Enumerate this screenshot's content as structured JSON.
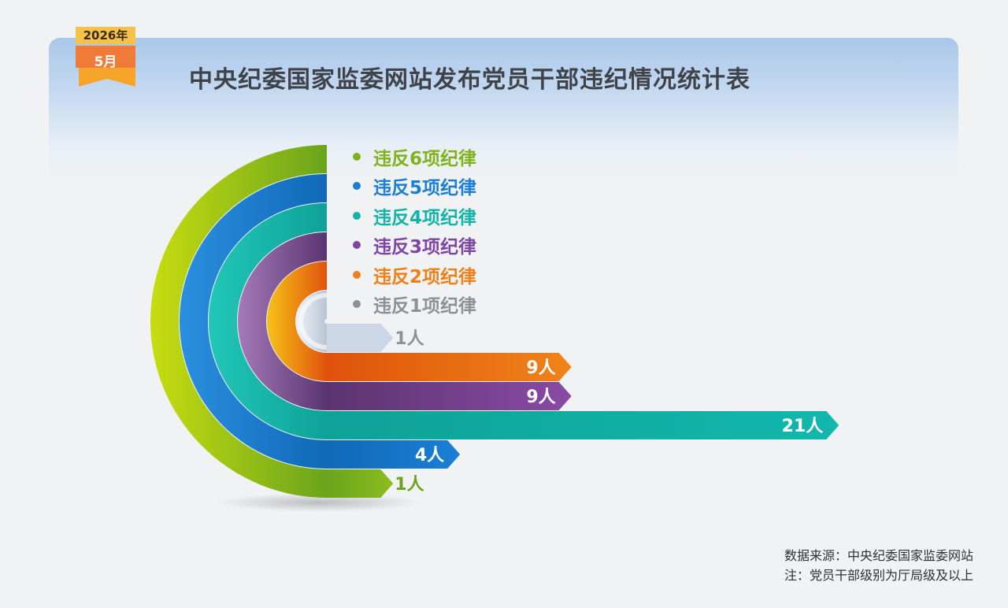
{
  "header": {
    "year_badge": "2026年",
    "month_badge": "5月",
    "title": "中央纪委国家监委网站发布党员干部违纪情况统计表"
  },
  "colors": {
    "violate_6": "#8cbd1e",
    "violate_5": "#1a80d6",
    "violate_4": "#13b7ac",
    "violate_3": "#8a4aa5",
    "violate_2": "#ef8418",
    "violate_1": "#9a9da2"
  },
  "chart_data": {
    "type": "bar",
    "title": "中央纪委国家监委网站发布党员干部违纪情况统计表",
    "unit": "人",
    "categories": [
      "违反6项纪律",
      "违反5项纪律",
      "违反4项纪律",
      "违反3项纪律",
      "违反2项纪律",
      "违反1项纪律"
    ],
    "values": [
      1,
      4,
      21,
      9,
      9,
      1
    ],
    "data_labels": [
      "1人",
      "4人",
      "21人",
      "9人",
      "9人",
      "1人"
    ],
    "legend_position": "top"
  },
  "footer": {
    "source": "数据来源：中央纪委国家监委网站",
    "note": "注：党员干部级别为厅局级及以上"
  }
}
